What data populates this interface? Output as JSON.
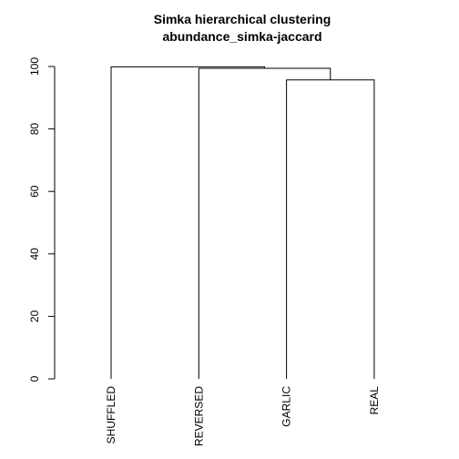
{
  "chart_data": {
    "type": "dendrogram",
    "title": "Simka hierarchical clustering",
    "subtitle": "abundance_simka-jaccard",
    "xlabel": "",
    "ylabel": "",
    "ylim": [
      0,
      100
    ],
    "y_ticks": [
      0,
      20,
      40,
      60,
      80,
      100
    ],
    "leaves": [
      "SHUFFLED",
      "REVERSED",
      "GARLIC",
      "REAL"
    ],
    "merges": [
      {
        "left": "GARLIC",
        "right": "REAL",
        "height": 95.7
      },
      {
        "left": "REVERSED",
        "right": "GARLIC+REAL",
        "height": 99.4
      },
      {
        "left": "SHUFFLED",
        "right": "REVERSED+GARLIC+REAL",
        "height": 99.9
      }
    ],
    "grid": false
  }
}
